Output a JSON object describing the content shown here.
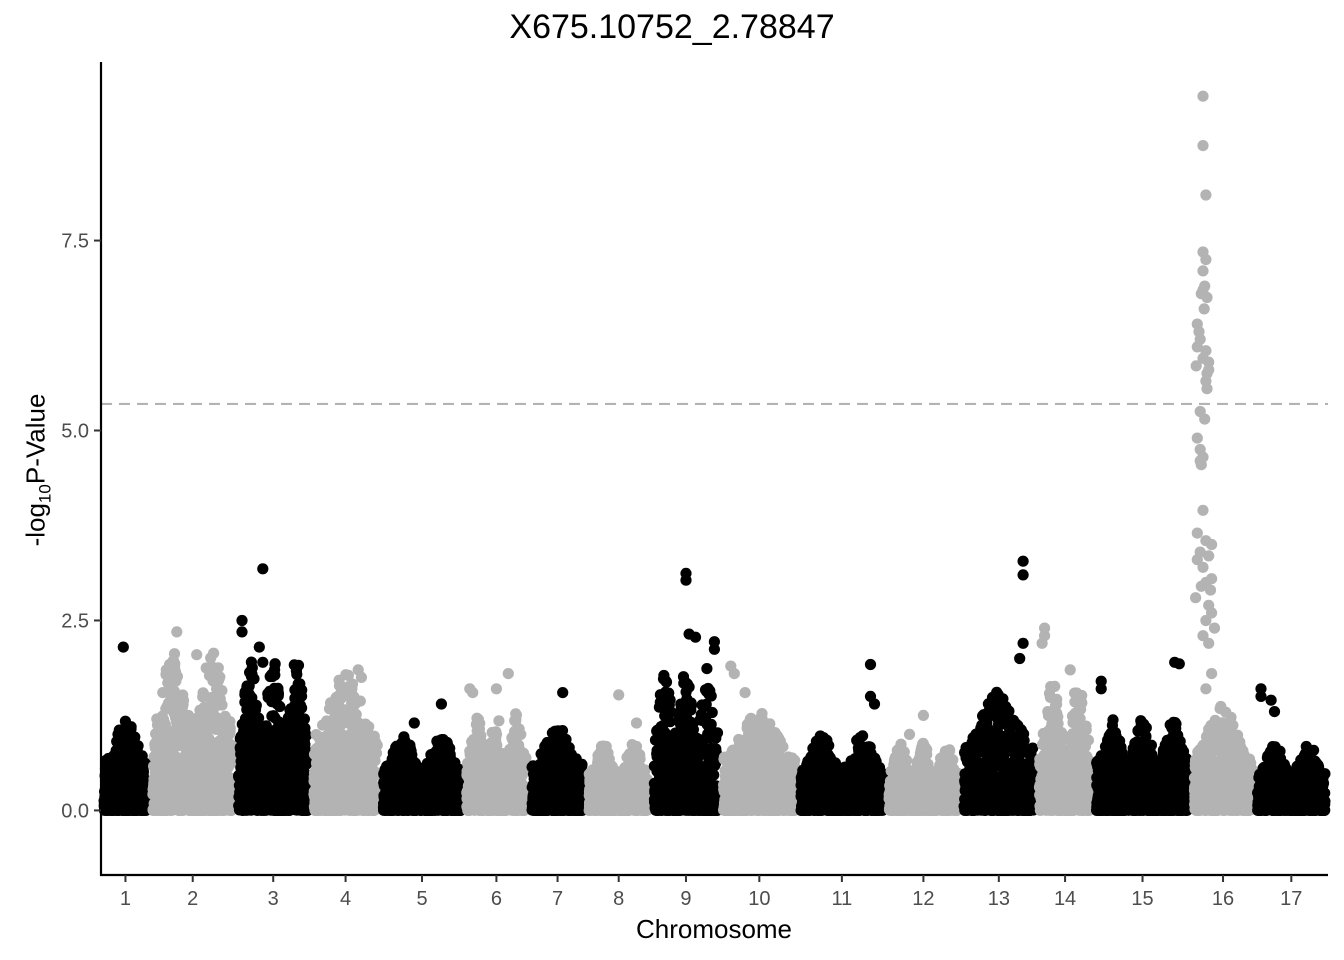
{
  "chart_data": {
    "type": "scatter",
    "title": "X675.10752_2.78847",
    "xlabel": "Chromosome",
    "ylabel_parts": {
      "prefix": "-log",
      "sub": "10",
      "suffix": "P-Value"
    },
    "ylim": [
      -0.85,
      9.85
    ],
    "yticks": [
      "0.0",
      "2.5",
      "5.0",
      "7.5"
    ],
    "yticks_values": [
      0,
      2.5,
      5.0,
      7.5
    ],
    "threshold": 5.35,
    "colors": {
      "odd": "#000000",
      "even": "#b3b3b3",
      "threshold": "#b3b3b3"
    },
    "chromosomes": [
      {
        "label": "1",
        "peak": 1.2,
        "hits": [
          [
            0.45,
            2.15
          ]
        ]
      },
      {
        "label": "2",
        "peak": 2.1,
        "hits": [
          [
            0.3,
            2.35
          ],
          [
            0.55,
            2.05
          ],
          [
            0.8,
            1.6
          ]
        ]
      },
      {
        "label": "3",
        "peak": 2.0,
        "hits": [
          [
            0.05,
            2.5
          ],
          [
            0.05,
            2.35
          ],
          [
            0.35,
            3.18
          ],
          [
            0.3,
            2.15
          ],
          [
            0.35,
            1.95
          ]
        ]
      },
      {
        "label": "4",
        "peak": 1.8,
        "hits": [
          [
            0.7,
            1.85
          ],
          [
            0.75,
            1.75
          ],
          [
            0.6,
            1.6
          ]
        ]
      },
      {
        "label": "5",
        "peak": 1.0,
        "hits": [
          [
            0.75,
            1.4
          ],
          [
            0.4,
            1.15
          ]
        ]
      },
      {
        "label": "6",
        "peak": 1.3,
        "hits": [
          [
            0.05,
            1.6
          ],
          [
            0.1,
            1.55
          ],
          [
            0.7,
            1.8
          ],
          [
            0.5,
            1.6
          ]
        ]
      },
      {
        "label": "7",
        "peak": 1.1,
        "hits": [
          [
            0.6,
            1.55
          ]
        ]
      },
      {
        "label": "8",
        "peak": 0.9,
        "hits": [
          [
            0.5,
            1.52
          ],
          [
            0.8,
            1.15
          ]
        ]
      },
      {
        "label": "9",
        "peak": 1.9,
        "hits": [
          [
            0.5,
            3.12
          ],
          [
            0.5,
            3.03
          ],
          [
            0.55,
            2.32
          ],
          [
            0.65,
            2.28
          ],
          [
            0.95,
            2.22
          ],
          [
            0.95,
            2.12
          ]
        ]
      },
      {
        "label": "10",
        "peak": 1.3,
        "hits": [
          [
            0.1,
            1.9
          ],
          [
            0.15,
            1.8
          ],
          [
            0.3,
            1.55
          ]
        ]
      },
      {
        "label": "11",
        "peak": 1.0,
        "hits": [
          [
            0.85,
            1.92
          ],
          [
            0.85,
            1.5
          ],
          [
            0.9,
            1.4
          ]
        ]
      },
      {
        "label": "12",
        "peak": 0.9,
        "hits": [
          [
            0.5,
            1.25
          ],
          [
            0.3,
            1.0
          ]
        ]
      },
      {
        "label": "13",
        "peak": 1.6,
        "hits": [
          [
            0.85,
            3.28
          ],
          [
            0.85,
            3.1
          ],
          [
            0.85,
            2.2
          ],
          [
            0.8,
            2.0
          ]
        ]
      },
      {
        "label": "14",
        "peak": 1.7,
        "hits": [
          [
            0.1,
            2.4
          ],
          [
            0.1,
            2.3
          ],
          [
            0.05,
            2.2
          ],
          [
            0.6,
            1.85
          ]
        ]
      },
      {
        "label": "15",
        "peak": 1.2,
        "hits": [
          [
            0.05,
            1.7
          ],
          [
            0.05,
            1.6
          ],
          [
            0.85,
            1.95
          ],
          [
            0.9,
            1.93
          ]
        ]
      },
      {
        "label": "16",
        "peak": 1.4,
        "hits": [
          [
            0.15,
            9.4
          ],
          [
            0.15,
            8.75
          ],
          [
            0.2,
            8.1
          ],
          [
            0.15,
            7.35
          ],
          [
            0.2,
            7.25
          ],
          [
            0.15,
            7.1
          ],
          [
            0.18,
            6.9
          ],
          [
            0.15,
            6.85
          ],
          [
            0.12,
            6.8
          ],
          [
            0.22,
            6.75
          ],
          [
            0.17,
            6.6
          ],
          [
            0.05,
            6.4
          ],
          [
            0.08,
            6.3
          ],
          [
            0.1,
            6.2
          ],
          [
            0.05,
            6.1
          ],
          [
            0.2,
            6.05
          ],
          [
            0.15,
            5.95
          ],
          [
            0.03,
            5.85
          ],
          [
            0.25,
            5.9
          ],
          [
            0.25,
            5.8
          ],
          [
            0.22,
            5.75
          ],
          [
            0.2,
            5.65
          ],
          [
            0.22,
            5.55
          ],
          [
            0.1,
            5.25
          ],
          [
            0.18,
            5.15
          ],
          [
            0.05,
            4.9
          ],
          [
            0.1,
            4.75
          ],
          [
            0.15,
            4.65
          ],
          [
            0.1,
            4.6
          ],
          [
            0.12,
            4.55
          ],
          [
            0.15,
            3.95
          ],
          [
            0.05,
            3.65
          ],
          [
            0.2,
            3.55
          ],
          [
            0.3,
            3.5
          ],
          [
            0.1,
            3.4
          ],
          [
            0.25,
            3.35
          ],
          [
            0.05,
            3.3
          ],
          [
            0.15,
            3.2
          ],
          [
            0.3,
            3.05
          ],
          [
            0.2,
            3.0
          ],
          [
            0.12,
            2.95
          ],
          [
            0.28,
            2.9
          ],
          [
            0.02,
            2.8
          ],
          [
            0.25,
            2.7
          ],
          [
            0.3,
            2.6
          ],
          [
            0.2,
            2.5
          ],
          [
            0.35,
            2.4
          ],
          [
            0.15,
            2.3
          ],
          [
            0.25,
            2.2
          ],
          [
            0.3,
            1.8
          ],
          [
            0.2,
            1.6
          ]
        ]
      },
      {
        "label": "17",
        "peak": 0.9,
        "hits": [
          [
            0.05,
            1.6
          ],
          [
            0.05,
            1.5
          ],
          [
            0.2,
            1.45
          ],
          [
            0.25,
            1.3
          ]
        ]
      }
    ]
  }
}
